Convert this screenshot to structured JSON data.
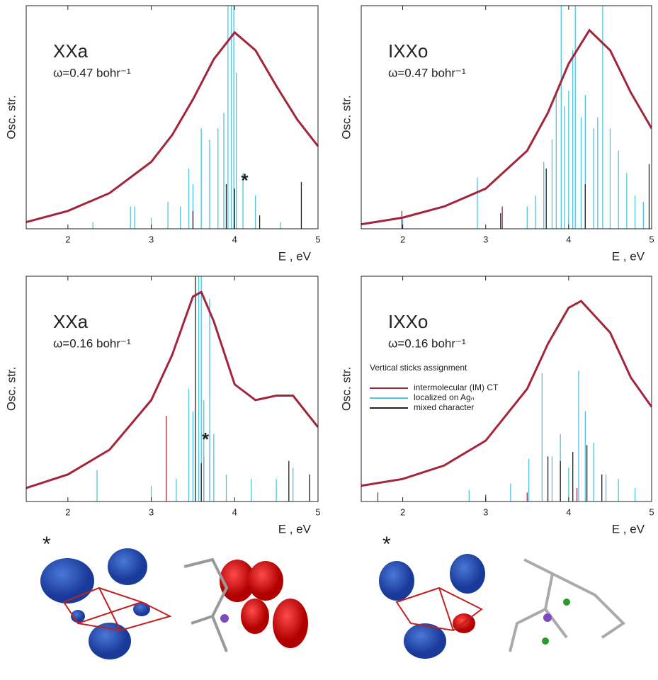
{
  "chart_data": [
    {
      "type": "spectrum",
      "title": "XXa",
      "subtitle": "ω=0.47 bohr⁻¹",
      "x_label": "E , eV",
      "y_label": "Osc. str.",
      "xlim": [
        1.5,
        5
      ],
      "xticks": [
        2,
        3,
        4,
        5
      ],
      "ylim": [
        0,
        1
      ],
      "curve": {
        "color": "#a3253a",
        "x": [
          1.5,
          2,
          2.5,
          3,
          3.25,
          3.5,
          3.75,
          4,
          4.25,
          4.5,
          4.75,
          5
        ],
        "values": [
          0.03,
          0.08,
          0.16,
          0.3,
          0.42,
          0.58,
          0.76,
          0.88,
          0.8,
          0.64,
          0.49,
          0.37
        ]
      },
      "series": [
        {
          "color": "#4dc4e0",
          "x": [
            2.3,
            2.75,
            2.8,
            3.0,
            3.2,
            3.35,
            3.45,
            3.5,
            3.6,
            3.7,
            3.8,
            3.87,
            3.92,
            3.96,
            3.99,
            4.02,
            4.1,
            4.25,
            4.55
          ],
          "values": [
            0.03,
            0.1,
            0.1,
            0.05,
            0.12,
            0.1,
            0.27,
            0.2,
            0.45,
            0.4,
            0.45,
            0.52,
            1.0,
            1.0,
            1.0,
            0.7,
            0.25,
            0.15,
            0.03
          ]
        },
        {
          "color": "#222222",
          "x": [
            3.5,
            3.9,
            4.0,
            4.3,
            4.8
          ],
          "values": [
            0.08,
            0.2,
            0.18,
            0.06,
            0.21
          ]
        }
      ],
      "annotations": [
        {
          "text": "*",
          "x": 4.12,
          "y": 0.21,
          "color": "#1a8fd0"
        }
      ]
    },
    {
      "type": "spectrum",
      "title": "IXXo",
      "subtitle": "ω=0.47 bohr⁻¹",
      "x_label": "E , eV",
      "y_label": "Osc. str.",
      "xlim": [
        1.5,
        5
      ],
      "xticks": [
        2,
        3,
        4,
        5
      ],
      "ylim": [
        0,
        1
      ],
      "curve": {
        "color": "#a3253a",
        "x": [
          1.5,
          2,
          2.5,
          3,
          3.5,
          3.75,
          4,
          4.25,
          4.5,
          4.75,
          5
        ],
        "values": [
          0.02,
          0.05,
          0.1,
          0.18,
          0.35,
          0.52,
          0.74,
          0.89,
          0.8,
          0.61,
          0.45
        ]
      },
      "series": [
        {
          "color": "#a3253a",
          "x": [
            1.99,
            3.2,
            4.0
          ],
          "values": [
            0.08,
            0.1,
            0.04
          ]
        },
        {
          "color": "#4dc4e0",
          "x": [
            2.0,
            2.9,
            3.5,
            3.6,
            3.7,
            3.8,
            3.85,
            3.91,
            3.95,
            4.0,
            4.05,
            4.08,
            4.15,
            4.2,
            4.3,
            4.35,
            4.41,
            4.5,
            4.6,
            4.7,
            4.8,
            4.9
          ],
          "values": [
            0.04,
            0.23,
            0.1,
            0.15,
            0.3,
            0.4,
            0.6,
            1.0,
            0.55,
            0.62,
            0.8,
            1.0,
            0.5,
            0.6,
            0.45,
            0.5,
            1.0,
            0.45,
            0.35,
            0.25,
            0.15,
            0.12
          ]
        },
        {
          "color": "#222222",
          "x": [
            3.18,
            3.73,
            4.2,
            4.97
          ],
          "values": [
            0.07,
            0.27,
            0.2,
            0.29
          ]
        }
      ]
    },
    {
      "type": "spectrum",
      "title": "XXa",
      "subtitle": "ω=0.16 bohr⁻¹",
      "x_label": "E , eV",
      "y_label": "Osc. str.",
      "xlim": [
        1.5,
        5
      ],
      "xticks": [
        2,
        3,
        4,
        5
      ],
      "ylim": [
        0,
        1
      ],
      "curve": {
        "color": "#a3253a",
        "x": [
          1.5,
          2,
          2.5,
          3,
          3.25,
          3.5,
          3.6,
          3.75,
          4,
          4.25,
          4.5,
          4.7,
          5
        ],
        "values": [
          0.06,
          0.12,
          0.23,
          0.45,
          0.65,
          0.91,
          0.93,
          0.8,
          0.52,
          0.45,
          0.47,
          0.47,
          0.33
        ]
      },
      "series": [
        {
          "color": "#a3253a",
          "x": [
            3.18,
            3.63
          ],
          "values": [
            0.38,
            0.2
          ]
        },
        {
          "color": "#4dc4e0",
          "x": [
            2.35,
            3.0,
            3.3,
            3.45,
            3.5,
            3.57,
            3.6,
            3.63,
            3.7,
            3.75,
            3.9,
            4.2,
            4.5,
            4.7,
            4.9
          ],
          "values": [
            0.14,
            0.07,
            0.1,
            0.5,
            0.4,
            1.0,
            1.0,
            0.45,
            0.9,
            0.3,
            0.12,
            0.1,
            0.1,
            0.15,
            0.1
          ]
        },
        {
          "color": "#222222",
          "x": [
            3.53,
            3.6,
            4.65,
            4.9
          ],
          "values": [
            1.0,
            0.17,
            0.18,
            0.12
          ]
        }
      ],
      "annotations": [
        {
          "text": "*",
          "x": 3.65,
          "y": 0.27,
          "color": "#a3253a"
        }
      ]
    },
    {
      "type": "spectrum",
      "title": "IXXo",
      "subtitle": "ω=0.16 bohr⁻¹",
      "x_label": "E , eV",
      "y_label": "Osc. str.",
      "xlim": [
        1.5,
        5
      ],
      "xticks": [
        2,
        3,
        4,
        5
      ],
      "ylim": [
        0,
        1
      ],
      "legend_title": "Vertical sticks assignment",
      "legend": "left",
      "curve": {
        "color": "#a3253a",
        "x": [
          1.5,
          2,
          2.5,
          3,
          3.5,
          3.75,
          4,
          4.15,
          4.5,
          4.75,
          5
        ],
        "values": [
          0.07,
          0.1,
          0.16,
          0.27,
          0.5,
          0.7,
          0.86,
          0.89,
          0.75,
          0.55,
          0.42
        ]
      },
      "series": [
        {
          "name": "intermolecular (IM) CT",
          "color": "#a3253a",
          "x": [
            1.7,
            3.0,
            3.5,
            4.1
          ],
          "values": [
            0.04,
            0.03,
            0.04,
            0.06
          ]
        },
        {
          "name": "localized on Agₙ",
          "color": "#4dc4e0",
          "x": [
            2.8,
            3.3,
            3.52,
            3.68,
            3.8,
            3.9,
            4.0,
            4.12,
            4.2,
            4.3,
            4.45,
            4.6,
            4.8
          ],
          "values": [
            0.05,
            0.08,
            0.19,
            0.57,
            0.2,
            0.3,
            0.15,
            0.58,
            0.4,
            0.26,
            0.12,
            0.1,
            0.06
          ]
        },
        {
          "name": "mixed character",
          "color": "#222222",
          "x": [
            3.75,
            3.9,
            4.05,
            4.22,
            4.4
          ],
          "values": [
            0.2,
            0.18,
            0.22,
            0.25,
            0.12
          ]
        }
      ]
    }
  ],
  "images": [
    {
      "label": "*",
      "color": "#a3253a"
    },
    {
      "label": "*",
      "color": "#1a8fd0"
    }
  ]
}
